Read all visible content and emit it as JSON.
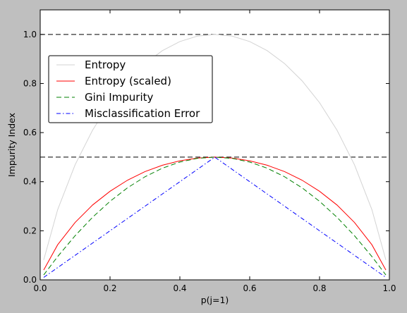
{
  "chart_data": {
    "type": "line",
    "title": "",
    "xlabel": "p(j=1)",
    "ylabel": "Impurity Index",
    "xlim": [
      0.0,
      1.0
    ],
    "ylim": [
      0.0,
      1.1
    ],
    "xticks": [
      "0.0",
      "0.2",
      "0.4",
      "0.6",
      "0.8",
      "1.0"
    ],
    "yticks": [
      "0.0",
      "0.2",
      "0.4",
      "0.6",
      "0.8",
      "1.0"
    ],
    "x": [
      0.01,
      0.05,
      0.1,
      0.15,
      0.2,
      0.25,
      0.3,
      0.35,
      0.4,
      0.45,
      0.5,
      0.55,
      0.6,
      0.65,
      0.7,
      0.75,
      0.8,
      0.85,
      0.9,
      0.95,
      0.99
    ],
    "series": [
      {
        "name": "Entropy",
        "color": "#d3d3d3",
        "dash": "solid",
        "values": [
          0.081,
          0.286,
          0.469,
          0.61,
          0.722,
          0.811,
          0.881,
          0.934,
          0.971,
          0.993,
          1.0,
          0.993,
          0.971,
          0.934,
          0.881,
          0.811,
          0.722,
          0.61,
          0.469,
          0.286,
          0.081
        ]
      },
      {
        "name": "Entropy (scaled)",
        "color": "#ff0000",
        "dash": "solid",
        "values": [
          0.04,
          0.143,
          0.234,
          0.305,
          0.361,
          0.406,
          0.441,
          0.467,
          0.485,
          0.496,
          0.5,
          0.496,
          0.485,
          0.467,
          0.441,
          0.406,
          0.361,
          0.305,
          0.234,
          0.143,
          0.04
        ]
      },
      {
        "name": "Gini Impurity",
        "color": "#008000",
        "dash": "dashed",
        "values": [
          0.02,
          0.095,
          0.18,
          0.255,
          0.32,
          0.375,
          0.42,
          0.455,
          0.48,
          0.495,
          0.5,
          0.495,
          0.48,
          0.455,
          0.42,
          0.375,
          0.32,
          0.255,
          0.18,
          0.095,
          0.02
        ]
      },
      {
        "name": "Misclassification Error",
        "color": "#0000ff",
        "dash": "dashdot",
        "values": [
          0.01,
          0.05,
          0.1,
          0.15,
          0.2,
          0.25,
          0.3,
          0.35,
          0.4,
          0.45,
          0.5,
          0.45,
          0.4,
          0.35,
          0.3,
          0.25,
          0.2,
          0.15,
          0.1,
          0.05,
          0.01
        ]
      }
    ],
    "reference_lines": [
      {
        "y": 1.0,
        "color": "#000000",
        "dash": "dashed"
      },
      {
        "y": 0.5,
        "color": "#000000",
        "dash": "dashed"
      }
    ],
    "legend_position": "upper-left",
    "grid": false
  }
}
